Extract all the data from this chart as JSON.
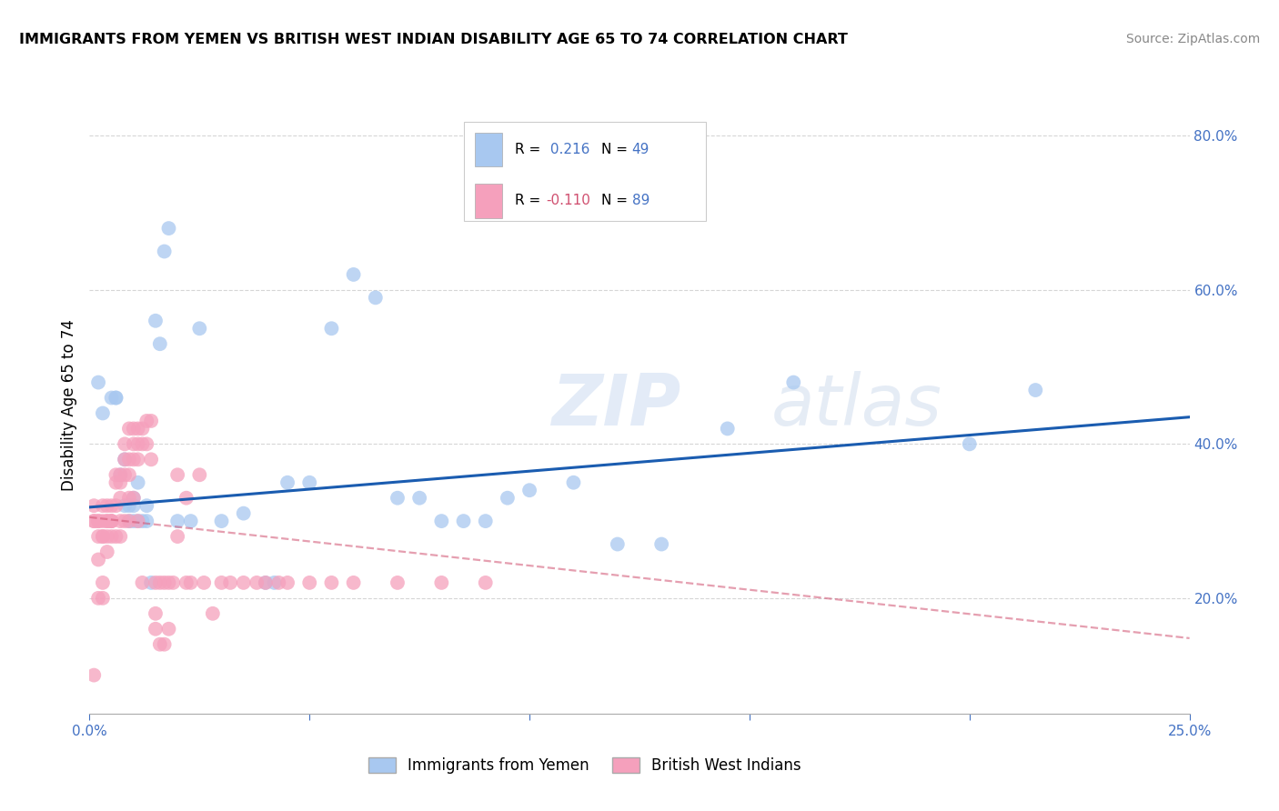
{
  "title": "IMMIGRANTS FROM YEMEN VS BRITISH WEST INDIAN DISABILITY AGE 65 TO 74 CORRELATION CHART",
  "source": "Source: ZipAtlas.com",
  "ylabel": "Disability Age 65 to 74",
  "watermark_zip": "ZIP",
  "watermark_atlas": "atlas",
  "xlim": [
    0.0,
    0.25
  ],
  "ylim": [
    0.05,
    0.85
  ],
  "xtick_positions": [
    0.0,
    0.05,
    0.1,
    0.15,
    0.2,
    0.25
  ],
  "xticklabels": [
    "0.0%",
    "",
    "",
    "",
    "",
    "25.0%"
  ],
  "ytick_positions": [
    0.2,
    0.4,
    0.6,
    0.8
  ],
  "yticklabels": [
    "20.0%",
    "40.0%",
    "60.0%",
    "80.0%"
  ],
  "blue_color": "#a8c8f0",
  "pink_color": "#f5a0bc",
  "blue_line_color": "#1a5cb0",
  "pink_line_color": "#d05070",
  "axis_color": "#4472c4",
  "grid_color": "#cccccc",
  "blue_R": 0.216,
  "blue_N": 49,
  "pink_R": -0.11,
  "pink_N": 89,
  "blue_line_x0": 0.0,
  "blue_line_y0": 0.318,
  "blue_line_x1": 0.25,
  "blue_line_y1": 0.435,
  "pink_line_x0": 0.0,
  "pink_line_y0": 0.305,
  "pink_line_x1": 0.25,
  "pink_line_y1": 0.148,
  "blue_scatter_x": [
    0.002,
    0.003,
    0.005,
    0.006,
    0.006,
    0.007,
    0.008,
    0.008,
    0.009,
    0.009,
    0.01,
    0.01,
    0.01,
    0.011,
    0.011,
    0.012,
    0.013,
    0.013,
    0.014,
    0.015,
    0.016,
    0.017,
    0.018,
    0.02,
    0.023,
    0.025,
    0.03,
    0.035,
    0.04,
    0.042,
    0.045,
    0.05,
    0.055,
    0.06,
    0.065,
    0.07,
    0.075,
    0.08,
    0.085,
    0.09,
    0.095,
    0.1,
    0.11,
    0.12,
    0.13,
    0.145,
    0.16,
    0.2,
    0.215
  ],
  "blue_scatter_y": [
    0.48,
    0.44,
    0.46,
    0.46,
    0.46,
    0.36,
    0.38,
    0.32,
    0.32,
    0.3,
    0.3,
    0.32,
    0.33,
    0.35,
    0.3,
    0.3,
    0.3,
    0.32,
    0.22,
    0.56,
    0.53,
    0.65,
    0.68,
    0.3,
    0.3,
    0.55,
    0.3,
    0.31,
    0.22,
    0.22,
    0.35,
    0.35,
    0.55,
    0.62,
    0.59,
    0.33,
    0.33,
    0.3,
    0.3,
    0.3,
    0.33,
    0.34,
    0.35,
    0.27,
    0.27,
    0.42,
    0.48,
    0.4,
    0.47
  ],
  "pink_scatter_x": [
    0.001,
    0.001,
    0.001,
    0.001,
    0.002,
    0.002,
    0.002,
    0.002,
    0.002,
    0.003,
    0.003,
    0.003,
    0.003,
    0.003,
    0.003,
    0.004,
    0.004,
    0.004,
    0.004,
    0.004,
    0.005,
    0.005,
    0.005,
    0.005,
    0.005,
    0.006,
    0.006,
    0.006,
    0.006,
    0.007,
    0.007,
    0.007,
    0.007,
    0.007,
    0.008,
    0.008,
    0.008,
    0.008,
    0.009,
    0.009,
    0.009,
    0.009,
    0.009,
    0.01,
    0.01,
    0.01,
    0.01,
    0.011,
    0.011,
    0.011,
    0.011,
    0.012,
    0.012,
    0.012,
    0.013,
    0.013,
    0.014,
    0.014,
    0.015,
    0.015,
    0.015,
    0.016,
    0.016,
    0.017,
    0.017,
    0.018,
    0.018,
    0.019,
    0.02,
    0.02,
    0.022,
    0.022,
    0.023,
    0.025,
    0.026,
    0.028,
    0.03,
    0.032,
    0.035,
    0.038,
    0.04,
    0.043,
    0.045,
    0.05,
    0.055,
    0.06,
    0.07,
    0.08,
    0.09
  ],
  "pink_scatter_y": [
    0.32,
    0.3,
    0.3,
    0.1,
    0.3,
    0.3,
    0.28,
    0.25,
    0.2,
    0.32,
    0.3,
    0.28,
    0.28,
    0.22,
    0.2,
    0.32,
    0.3,
    0.3,
    0.28,
    0.26,
    0.32,
    0.3,
    0.3,
    0.3,
    0.28,
    0.36,
    0.35,
    0.32,
    0.28,
    0.36,
    0.35,
    0.33,
    0.3,
    0.28,
    0.4,
    0.38,
    0.36,
    0.3,
    0.42,
    0.38,
    0.36,
    0.33,
    0.3,
    0.42,
    0.4,
    0.38,
    0.33,
    0.42,
    0.4,
    0.38,
    0.3,
    0.42,
    0.4,
    0.22,
    0.43,
    0.4,
    0.43,
    0.38,
    0.18,
    0.22,
    0.16,
    0.14,
    0.22,
    0.14,
    0.22,
    0.16,
    0.22,
    0.22,
    0.36,
    0.28,
    0.33,
    0.22,
    0.22,
    0.36,
    0.22,
    0.18,
    0.22,
    0.22,
    0.22,
    0.22,
    0.22,
    0.22,
    0.22,
    0.22,
    0.22,
    0.22,
    0.22,
    0.22,
    0.22
  ]
}
